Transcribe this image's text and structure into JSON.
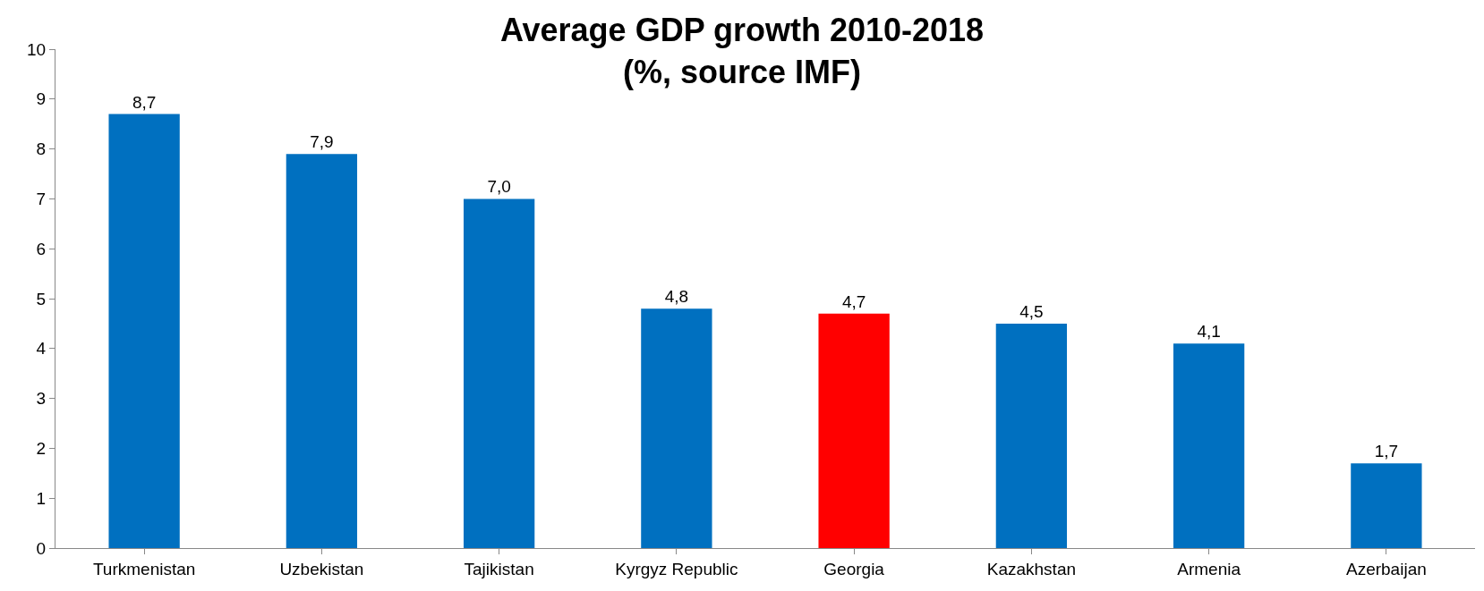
{
  "chart_data": {
    "type": "bar",
    "title": "Average GDP growth 2010-2018\n(%, source IMF)",
    "categories": [
      "Turkmenistan",
      "Uzbekistan",
      "Tajikistan",
      "Kyrgyz Republic",
      "Georgia",
      "Kazakhstan",
      "Armenia",
      "Azerbaijan"
    ],
    "values": [
      8.7,
      7.9,
      7.0,
      4.8,
      4.7,
      4.5,
      4.1,
      1.7
    ],
    "value_labels": [
      "8,7",
      "7,9",
      "7,0",
      "4,8",
      "4,7",
      "4,5",
      "4,1",
      "1,7"
    ],
    "colors": [
      "#0070c0",
      "#0070c0",
      "#0070c0",
      "#0070c0",
      "#ff0000",
      "#0070c0",
      "#0070c0",
      "#0070c0"
    ],
    "ylim": [
      0,
      10
    ],
    "yticks": [
      0,
      1,
      2,
      3,
      4,
      5,
      6,
      7,
      8,
      9,
      10
    ],
    "grid": false,
    "legend": false
  }
}
